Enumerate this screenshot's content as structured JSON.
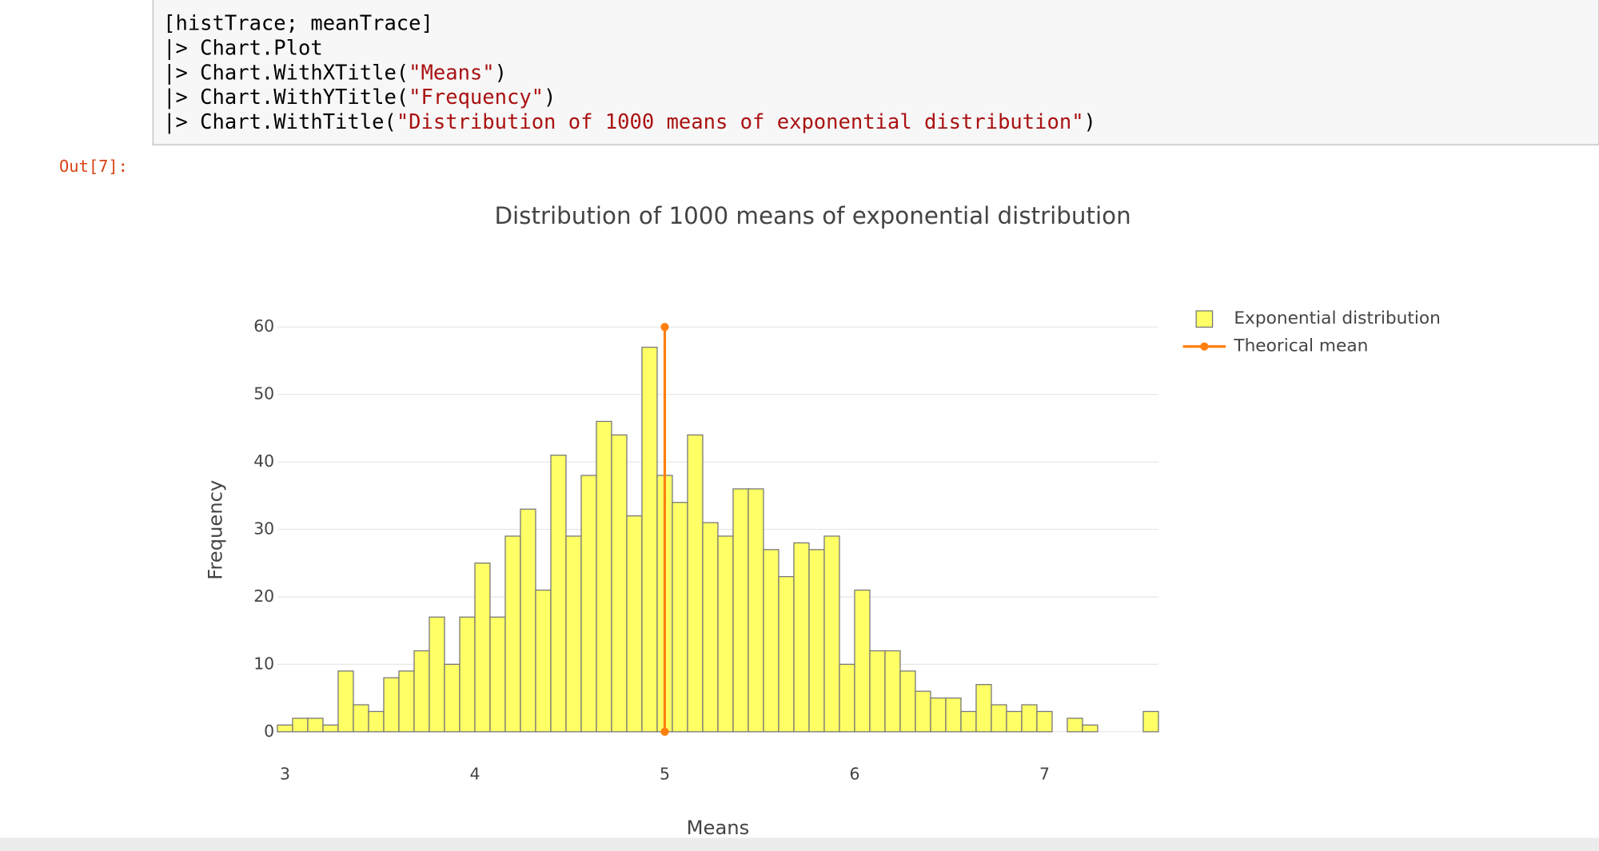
{
  "notebook": {
    "code_lines": [
      [
        "[histTrace; meanTrace]"
      ],
      [
        "|> Chart.Plot"
      ],
      [
        "|> Chart.WithXTitle(",
        "\"Means\"",
        ")"
      ],
      [
        "|> Chart.WithYTitle(",
        "\"Frequency\"",
        ")"
      ],
      [
        "|> Chart.WithTitle(",
        "\"Distribution of 1000 means of exponential distribution\"",
        ")"
      ]
    ],
    "output_prompt": "Out[7]:"
  },
  "chart_data": {
    "type": "histogram",
    "title": "Distribution of 1000 means of exponential distribution",
    "x_label": "Means",
    "y_label": "Frequency",
    "bins": [
      2.96,
      3.04,
      3.12,
      3.2,
      3.28,
      3.36,
      3.44,
      3.52,
      3.6,
      3.68,
      3.76,
      3.84,
      3.92,
      4.0,
      4.08,
      4.16,
      4.24,
      4.32,
      4.4,
      4.48,
      4.56,
      4.64,
      4.72,
      4.8,
      4.88,
      4.96,
      5.04,
      5.12,
      5.2,
      5.28,
      5.36,
      5.44,
      5.52,
      5.6,
      5.68,
      5.76,
      5.84,
      5.92,
      6.0,
      6.08,
      6.16,
      6.24,
      6.32,
      6.4,
      6.48,
      6.56,
      6.64,
      6.72,
      6.8,
      6.88,
      6.96,
      7.04,
      7.12,
      7.2,
      7.28,
      7.36,
      7.44,
      7.52,
      7.6
    ],
    "series": [
      {
        "name": "Exponential distribution",
        "color": "#ffff66",
        "values": [
          1,
          2,
          2,
          1,
          9,
          4,
          3,
          8,
          9,
          12,
          17,
          10,
          17,
          25,
          17,
          29,
          33,
          21,
          41,
          29,
          38,
          46,
          44,
          32,
          57,
          38,
          34,
          44,
          31,
          29,
          36,
          36,
          27,
          23,
          28,
          27,
          29,
          10,
          21,
          12,
          12,
          9,
          6,
          5,
          5,
          3,
          7,
          4,
          3,
          4,
          3,
          0,
          2,
          1,
          0,
          0,
          0,
          3
        ]
      },
      {
        "name": "Theorical mean",
        "type": "line",
        "color": "#ff7f0e",
        "x": [
          5,
          5
        ],
        "values": [
          0,
          60
        ]
      }
    ],
    "xlim": [
      2.96,
      7.6
    ],
    "ylim": [
      0,
      63
    ],
    "xticks": [
      3,
      4,
      5,
      6,
      7
    ],
    "yticks": [
      0,
      10,
      20,
      30,
      40,
      50,
      60
    ],
    "grid": "y",
    "legend": "outside-right-top"
  }
}
